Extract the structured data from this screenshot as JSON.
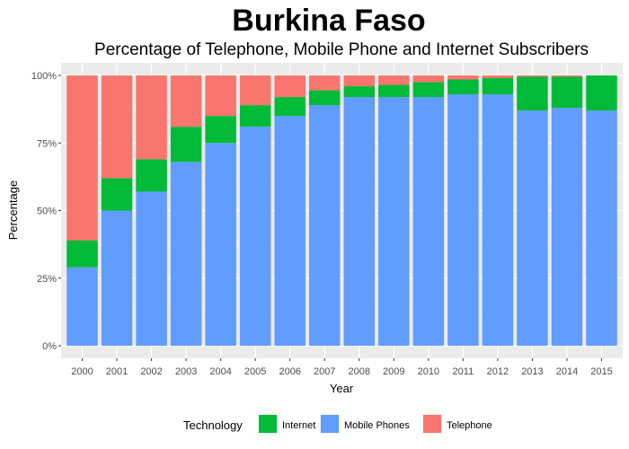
{
  "chart_data": {
    "type": "bar",
    "stacked": true,
    "title": "Burkina Faso",
    "subtitle": "Percentage of Telephone, Mobile Phone and Internet Subscribers",
    "xlabel": "Year",
    "ylabel": "Percentage",
    "ylim": [
      0,
      100
    ],
    "yticks": [
      "0%",
      "25%",
      "50%",
      "75%",
      "100%"
    ],
    "ytick_values": [
      0,
      25,
      50,
      75,
      100
    ],
    "grid": true,
    "legend": {
      "title": "Technology",
      "position": "bottom"
    },
    "categories": [
      "2000",
      "2001",
      "2002",
      "2003",
      "2004",
      "2005",
      "2006",
      "2007",
      "2008",
      "2009",
      "2010",
      "2011",
      "2012",
      "2013",
      "2014",
      "2015"
    ],
    "series": [
      {
        "name": "Mobile Phones",
        "color": "#619CFF",
        "values": [
          29,
          50,
          57,
          68,
          75,
          81,
          85,
          89,
          92,
          92,
          92,
          93,
          93,
          87,
          88,
          87
        ]
      },
      {
        "name": "Internet",
        "color": "#00BA38",
        "values": [
          10,
          12,
          12,
          13,
          10,
          8,
          7,
          5.5,
          4,
          4.5,
          5.5,
          5.5,
          6,
          12.5,
          11.5,
          13
        ]
      },
      {
        "name": "Telephone",
        "color": "#F8766D",
        "values": [
          61,
          38,
          31,
          19,
          15,
          11,
          8,
          5.5,
          4,
          3.5,
          2.5,
          1.5,
          1,
          0.5,
          0.5,
          0
        ]
      }
    ],
    "legend_order": [
      "Internet",
      "Mobile Phones",
      "Telephone"
    ]
  }
}
